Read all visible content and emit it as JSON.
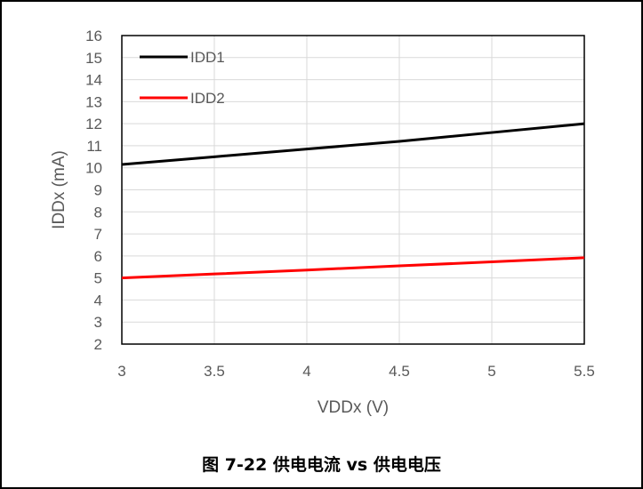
{
  "chart_data": {
    "type": "line",
    "title": "",
    "xlabel": "VDDx (V)",
    "ylabel": "IDDx (mA)",
    "x": [
      3,
      3.5,
      4,
      4.5,
      5,
      5.5
    ],
    "xticks": [
      "3",
      "3.5",
      "4",
      "4.5",
      "5",
      "5.5"
    ],
    "yticks": [
      "2",
      "3",
      "4",
      "5",
      "6",
      "7",
      "8",
      "9",
      "10",
      "11",
      "12",
      "13",
      "14",
      "15",
      "16"
    ],
    "xlim": [
      3,
      5.5
    ],
    "ylim": [
      2,
      16
    ],
    "grid": true,
    "legend_placement": "top-left",
    "series": [
      {
        "name": "IDD1",
        "color": "#000000",
        "values": [
          10.15,
          10.5,
          10.85,
          11.2,
          11.6,
          12.0
        ]
      },
      {
        "name": "IDD2",
        "color": "#ff0000",
        "values": [
          5.0,
          5.18,
          5.36,
          5.55,
          5.73,
          5.92
        ]
      }
    ]
  },
  "caption": "图 7-22 供电电流 vs 供电电压"
}
